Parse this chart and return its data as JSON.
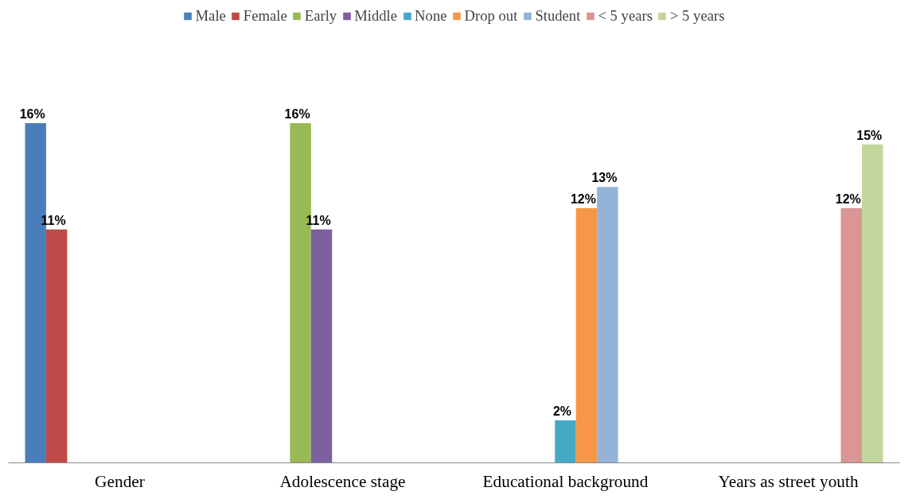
{
  "chart_data": {
    "type": "bar",
    "categories": [
      "Gender",
      "Adolescence stage",
      "Educational background",
      "Years as street youth"
    ],
    "series": [
      {
        "name": "Male",
        "color": "#4a7ebb",
        "values": [
          16,
          null,
          null,
          null
        ],
        "value_labels": [
          "16%",
          null,
          null,
          null
        ]
      },
      {
        "name": "Female",
        "color": "#be4b48",
        "values": [
          11,
          null,
          null,
          null
        ],
        "value_labels": [
          "11%",
          null,
          null,
          null
        ]
      },
      {
        "name": "Early",
        "color": "#98b954",
        "values": [
          null,
          16,
          null,
          null
        ],
        "value_labels": [
          null,
          "16%",
          null,
          null
        ]
      },
      {
        "name": "Middle",
        "color": "#7d60a0",
        "values": [
          null,
          11,
          null,
          null
        ],
        "value_labels": [
          null,
          "11%",
          null,
          null
        ]
      },
      {
        "name": "None",
        "color": "#46aac5",
        "values": [
          null,
          null,
          2,
          null
        ],
        "value_labels": [
          null,
          null,
          "2%",
          null
        ]
      },
      {
        "name": "Drop out",
        "color": "#f79646",
        "values": [
          null,
          null,
          12,
          null
        ],
        "value_labels": [
          null,
          null,
          "12%",
          null
        ]
      },
      {
        "name": "Student",
        "color": "#95b3d7",
        "values": [
          null,
          null,
          13,
          null
        ],
        "value_labels": [
          null,
          null,
          "13%",
          null
        ]
      },
      {
        "name": "< 5 years",
        "color": "#d99694",
        "values": [
          null,
          null,
          null,
          12
        ],
        "value_labels": [
          null,
          null,
          null,
          "12%"
        ]
      },
      {
        "name": "> 5 years",
        "color": "#c3d69b",
        "values": [
          null,
          null,
          null,
          15
        ],
        "value_labels": [
          null,
          null,
          null,
          "15%"
        ]
      }
    ],
    "legend": "top",
    "grid": false
  }
}
